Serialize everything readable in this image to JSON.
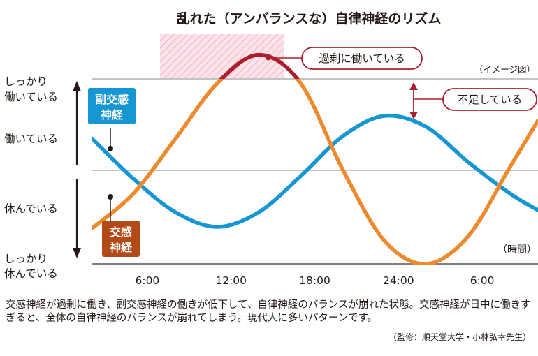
{
  "chart_data": {
    "type": "line",
    "title": "乱れた（アンバランスな）自律神経のリズム",
    "note": "（イメージ図）",
    "xlabel": "（時間）",
    "x_ticks": [
      "6:00",
      "12:00",
      "18:00",
      "24:00",
      "6:00"
    ],
    "y_levels": [
      {
        "label": [
          "しっかり",
          "働いている"
        ],
        "value": 1
      },
      {
        "label": [
          "働いている"
        ],
        "value": 0.5
      },
      {
        "label": [
          "休んでいる"
        ],
        "value": -0.5
      },
      {
        "label": [
          "しっかり",
          "休んでいる"
        ],
        "value": -1
      }
    ],
    "ylim": [
      -1,
      1
    ],
    "series": [
      {
        "name": [
          "交感",
          "神経"
        ],
        "color": "#ee8a2e",
        "excess_color": "#a8202f",
        "x": [
          0,
          3,
          6,
          9,
          12,
          15,
          18,
          21,
          24,
          27,
          30,
          32
        ],
        "y": [
          -0.62,
          -0.24,
          0.35,
          0.95,
          1.26,
          0.95,
          0.02,
          -0.75,
          -1.0,
          -0.7,
          0.05,
          0.55
        ]
      },
      {
        "name": [
          "副交感",
          "神経"
        ],
        "color": "#1696d2",
        "x": [
          0,
          3,
          6,
          9,
          12,
          15,
          18,
          21,
          24,
          27,
          30,
          32
        ],
        "y": [
          0.36,
          -0.08,
          -0.44,
          -0.6,
          -0.44,
          -0.05,
          0.38,
          0.6,
          0.48,
          0.1,
          -0.24,
          -0.42
        ]
      }
    ],
    "annotations": {
      "excess": "過剰に働いている",
      "shortage": "不足している"
    }
  },
  "caption": "交感神経が過剰に働き、副交感神経の働きが低下して、自律神経のバランスが崩れた状態。交感神経が日中に働きすぎると、全体の自律神経のバランスが崩れてしまう。現代人に多いパターンです。",
  "source": "（監修：順天堂大学・小林弘幸先生）"
}
